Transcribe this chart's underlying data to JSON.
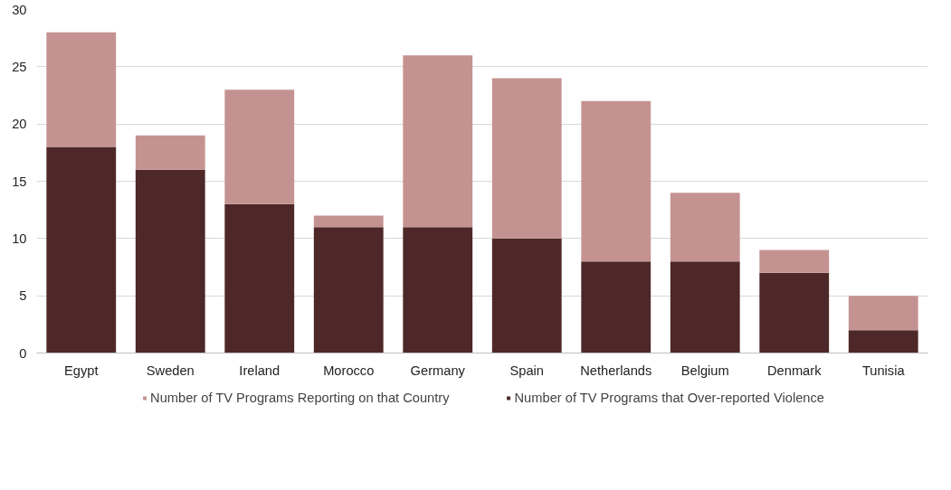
{
  "chart_data": {
    "type": "bar",
    "stacked": true,
    "categories": [
      "Egypt",
      "Sweden",
      "Ireland",
      "Morocco",
      "Germany",
      "Spain",
      "Netherlands",
      "Belgium",
      "Denmark",
      "Tunisia"
    ],
    "series": [
      {
        "name": "Number of TV Programs that Over-reported Violence",
        "color": "#4e2828",
        "values": [
          18,
          16,
          13,
          11,
          11,
          10,
          8,
          8,
          7,
          2
        ]
      },
      {
        "name": "Number of TV Programs Reporting on that Country",
        "color": "#c49391",
        "values": [
          10,
          3,
          10,
          1,
          15,
          14,
          14,
          6,
          2,
          3
        ]
      }
    ],
    "ylim": [
      0,
      30
    ],
    "yticks": [
      0,
      5,
      10,
      15,
      20,
      25,
      30
    ],
    "grid": "y",
    "legend": "bottom"
  }
}
